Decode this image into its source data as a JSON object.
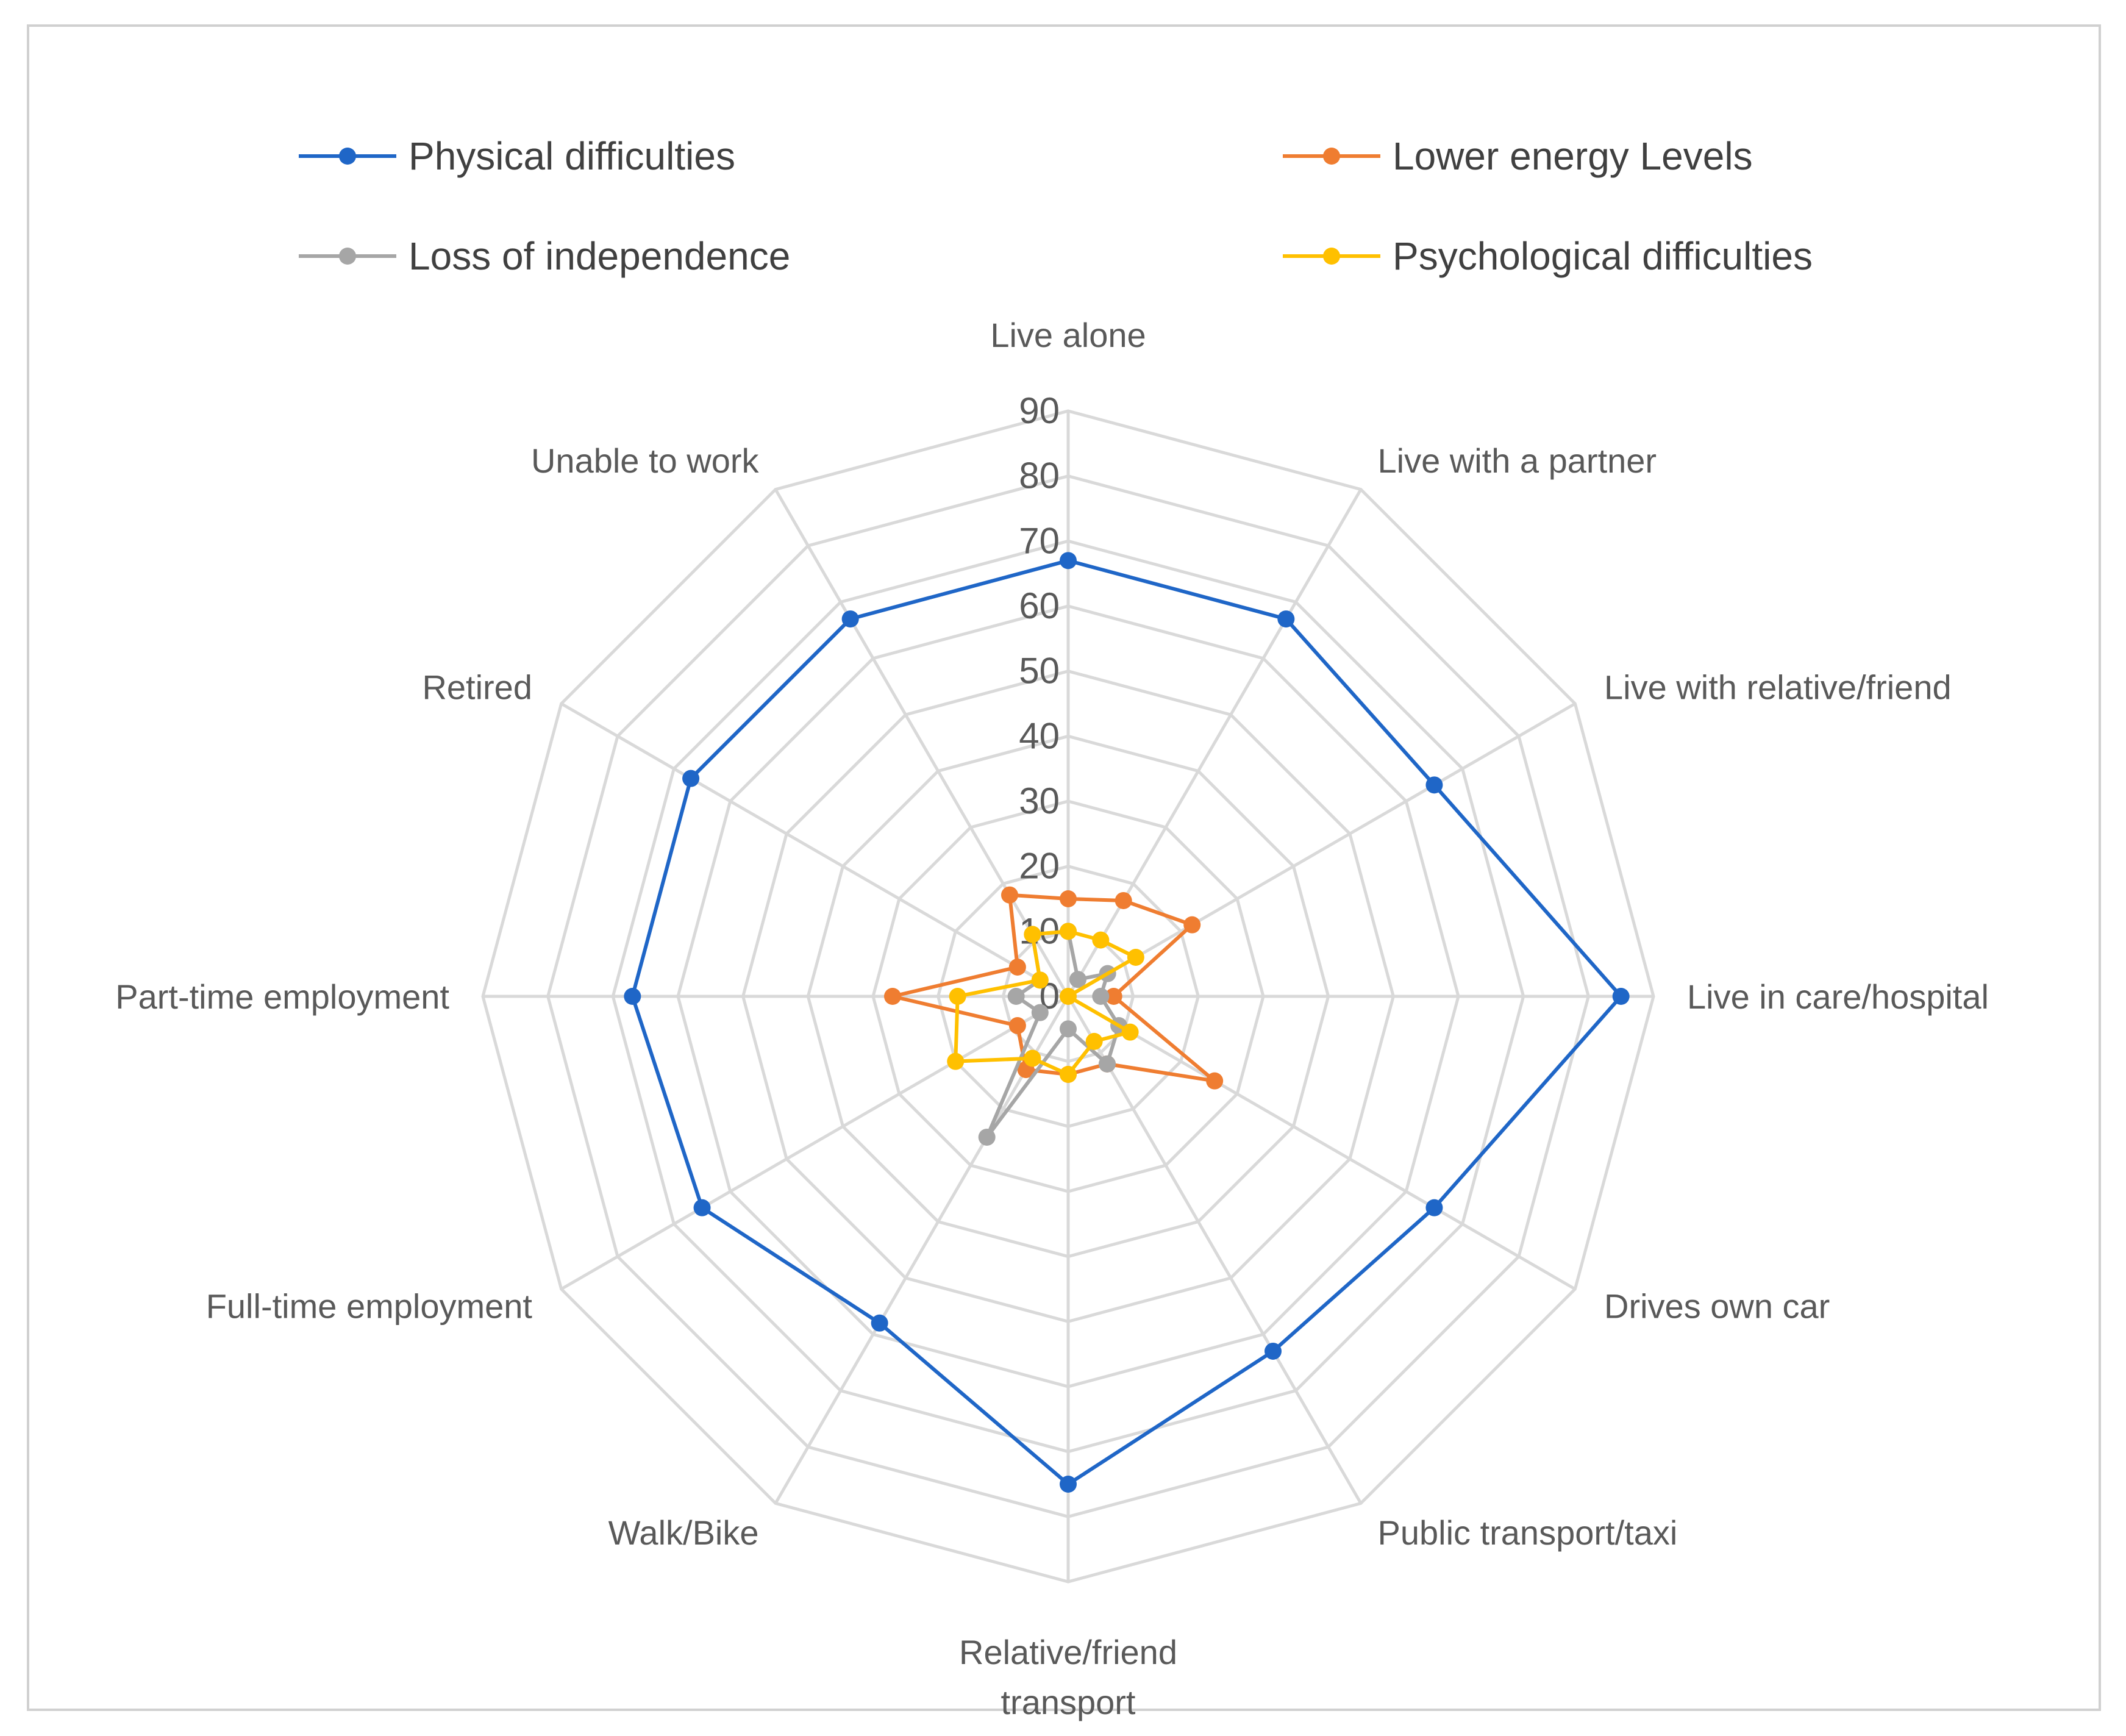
{
  "chart_data": {
    "type": "radar",
    "title": "",
    "categories": [
      "Live alone",
      "Live with a partner",
      "Live with relative/friend",
      "Live in care/hospital",
      "Drives own car",
      "Public transport/taxi",
      "Relative/friend transport",
      "Walk/Bike",
      "Full-time employment",
      "Part-time employment",
      "Retired",
      "Unable to work"
    ],
    "category_lines": [
      [
        "Live alone"
      ],
      [
        "Live with a partner"
      ],
      [
        "Live with relative/friend"
      ],
      [
        "Live in care/hospital"
      ],
      [
        "Drives own car"
      ],
      [
        "Public transport/taxi"
      ],
      [
        "Relative/friend",
        "transport"
      ],
      [
        "Walk/Bike"
      ],
      [
        "Full-time employment"
      ],
      [
        "Part-time employment"
      ],
      [
        "Retired"
      ],
      [
        "Unable to work"
      ]
    ],
    "r_range": [
      0,
      90
    ],
    "r_ticks": [
      "0",
      "10",
      "20",
      "30",
      "40",
      "50",
      "60",
      "70",
      "80",
      "90"
    ],
    "legend_position": "top",
    "series": [
      {
        "name": "Physical difficulties",
        "color": "#1f66c7",
        "values": [
          67,
          67,
          65,
          85,
          65,
          63,
          75,
          58,
          65,
          67,
          67,
          67
        ]
      },
      {
        "name": "Lower energy Levels",
        "color": "#ef7d31",
        "values": [
          15,
          17,
          22,
          7,
          26,
          12,
          12,
          13,
          9,
          27,
          9,
          18
        ]
      },
      {
        "name": "Loss of independence",
        "color": "#a6a6a6",
        "values": [
          10,
          3,
          7,
          5,
          9,
          12,
          5,
          25,
          5,
          8,
          5,
          11
        ]
      },
      {
        "name": "Psychological difficulties",
        "color": "#ffc000",
        "values": [
          10,
          10,
          12,
          0,
          11,
          8,
          12,
          11,
          20,
          17,
          5,
          11
        ]
      }
    ]
  }
}
